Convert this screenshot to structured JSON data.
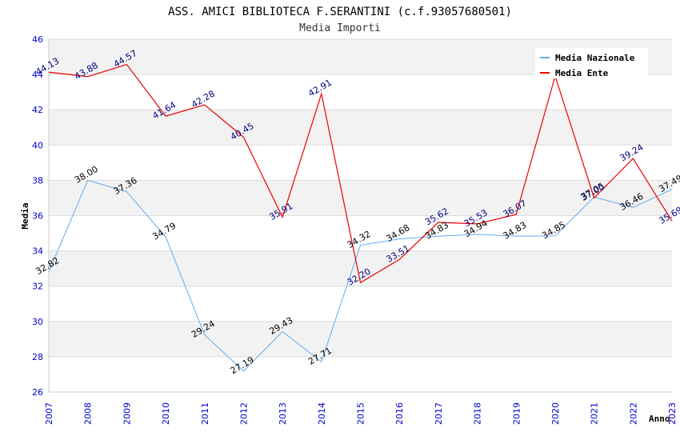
{
  "chart_data": {
    "type": "line",
    "title": "ASS. AMICI BIBLIOTECA F.SERANTINI (c.f.93057680501)",
    "subtitle": "Media Importi",
    "xlabel": "Anno",
    "ylabel": "Media",
    "ylim": [
      26,
      46
    ],
    "yticks": [
      "26",
      "28",
      "30",
      "32",
      "34",
      "36",
      "38",
      "40",
      "42",
      "44",
      "46"
    ],
    "categories": [
      "2007",
      "2008",
      "2009",
      "2010",
      "2011",
      "2012",
      "2013",
      "2014",
      "2015",
      "2016",
      "2017",
      "2018",
      "2019",
      "2020",
      "2021",
      "2022",
      "2023"
    ],
    "grid": "horizontal alternating bands",
    "legend_position": "top-right",
    "series": [
      {
        "name": "Media Nazionale",
        "color": "#66aaee",
        "values": [
          32.82,
          38.0,
          37.36,
          34.79,
          29.24,
          27.19,
          29.43,
          27.71,
          34.32,
          34.68,
          34.83,
          34.94,
          34.83,
          34.85,
          37.05,
          36.46,
          37.49
        ],
        "labels": [
          "32.82",
          "38.00",
          "37.36",
          "34.79",
          "29.24",
          "27.19",
          "29.43",
          "27.71",
          "34.32",
          "34.68",
          "34.83",
          "34.94",
          "34.83",
          "34.85",
          "37.05",
          "36.46",
          "37.49"
        ]
      },
      {
        "name": "Media Ente",
        "color": "#ee0000",
        "values": [
          44.13,
          43.88,
          44.57,
          41.64,
          42.28,
          40.45,
          35.91,
          42.91,
          32.2,
          33.51,
          35.62,
          35.53,
          36.07,
          43.91,
          37.0,
          39.24,
          35.69
        ],
        "labels": [
          "44.13",
          "43.88",
          "44.57",
          "41.64",
          "42.28",
          "40.45",
          "35.91",
          "42.91",
          "32.20",
          "33.51",
          "35.62",
          "35.53",
          "36.07",
          "",
          "37.00",
          "39.24",
          "35.69"
        ]
      }
    ]
  }
}
